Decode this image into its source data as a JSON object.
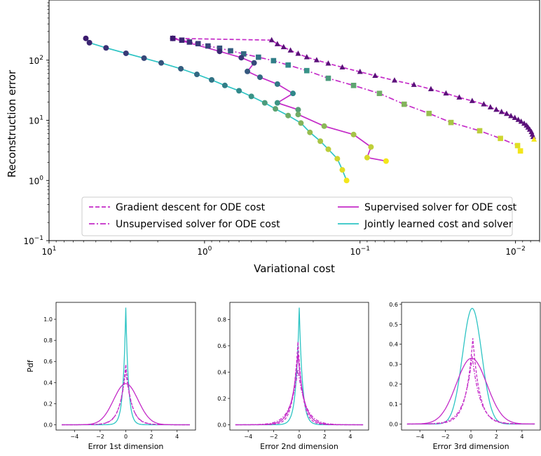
{
  "colors": {
    "magenta": "#c42bc8",
    "cyan": "#2ec4c4",
    "marker_start": "#3b1a6e",
    "marker_mid": "#2f8f8c",
    "marker_end": "#f3e61a",
    "triangle": "#5b117a"
  },
  "chart_data": [
    {
      "type": "line",
      "xlabel": "Variational cost",
      "ylabel": "Reconstruction error",
      "xscale": "log",
      "yscale": "log",
      "xlim": [
        10,
        0.007
      ],
      "ylim": [
        0.1,
        1000
      ],
      "xticks": [
        {
          "value": 10,
          "base": "10",
          "exp": "1"
        },
        {
          "value": 1,
          "base": "10",
          "exp": "0"
        },
        {
          "value": 0.1,
          "base": "10",
          "exp": "−1"
        },
        {
          "value": 0.01,
          "base": "10",
          "exp": "−2"
        }
      ],
      "yticks": [
        {
          "value": 0.1,
          "base": "10",
          "exp": "−1"
        },
        {
          "value": 1,
          "base": "10",
          "exp": "0"
        },
        {
          "value": 10,
          "base": "10",
          "exp": "1"
        },
        {
          "value": 100,
          "base": "10",
          "exp": "2"
        }
      ],
      "legend": {
        "position": "lower-center",
        "columns": 2,
        "entries": [
          {
            "label": "Gradient descent for ODE cost",
            "color": "#c42bc8",
            "style": "dashed"
          },
          {
            "label": "Supervised solver for ODE cost",
            "color": "#c42bc8",
            "style": "solid"
          },
          {
            "label": "Unsupervised solver for ODE cost",
            "color": "#c42bc8",
            "style": "dashdot"
          },
          {
            "label": "Jointly learned cost and solver",
            "color": "#2ec4c4",
            "style": "solid"
          }
        ]
      },
      "series": [
        {
          "name": "Gradient descent for ODE cost",
          "color": "#c42bc8",
          "style": "dashed",
          "marker": "triangle",
          "x": [
            1.6,
            0.37,
            0.34,
            0.31,
            0.28,
            0.25,
            0.22,
            0.19,
            0.16,
            0.13,
            0.1,
            0.08,
            0.06,
            0.045,
            0.035,
            0.028,
            0.023,
            0.019,
            0.016,
            0.0145,
            0.0133,
            0.0123,
            0.0114,
            0.0107,
            0.0101,
            0.0096,
            0.0092,
            0.0088,
            0.0085,
            0.0083,
            0.0081,
            0.0079,
            0.0078,
            0.0077,
            0.0076
          ],
          "y": [
            230,
            215,
            185,
            165,
            145,
            128,
            112,
            100,
            88,
            76,
            64,
            55,
            46,
            39,
            33,
            28,
            24,
            21,
            18.5,
            16.5,
            15,
            13.8,
            12.8,
            11.8,
            11,
            10.2,
            9.5,
            8.8,
            8.2,
            7.6,
            7.0,
            6.4,
            5.8,
            5.3,
            4.8
          ]
        },
        {
          "name": "Unsupervised solver for ODE cost",
          "color": "#c42bc8",
          "style": "dashdot",
          "marker": "square",
          "x": [
            1.6,
            1.4,
            1.25,
            1.1,
            0.95,
            0.8,
            0.68,
            0.56,
            0.45,
            0.36,
            0.29,
            0.22,
            0.16,
            0.11,
            0.075,
            0.052,
            0.036,
            0.026,
            0.017,
            0.0125,
            0.0097,
            0.0093
          ],
          "y": [
            230,
            215,
            200,
            188,
            172,
            158,
            143,
            127,
            112,
            98,
            83,
            67,
            50,
            38,
            28,
            18.5,
            13,
            9.2,
            6.7,
            5.0,
            3.8,
            3.1
          ]
        },
        {
          "name": "Supervised solver for ODE cost",
          "color": "#c42bc8",
          "style": "solid",
          "marker": "circle",
          "x": [
            1.6,
            0.8,
            0.58,
            0.48,
            0.53,
            0.44,
            0.34,
            0.27,
            0.34,
            0.25,
            0.25,
            0.17,
            0.11,
            0.085,
            0.09,
            0.068
          ],
          "y": [
            230,
            140,
            110,
            90,
            65,
            52,
            40,
            28,
            19.5,
            15,
            12.5,
            8.0,
            5.8,
            3.6,
            2.4,
            2.1
          ]
        },
        {
          "name": "Jointly learned cost and solver",
          "color": "#2ec4c4",
          "style": "solid",
          "marker": "circle",
          "x": [
            5.8,
            5.5,
            4.3,
            3.2,
            2.45,
            1.9,
            1.42,
            1.12,
            0.9,
            0.74,
            0.6,
            0.5,
            0.41,
            0.35,
            0.29,
            0.24,
            0.21,
            0.18,
            0.16,
            0.14,
            0.13,
            0.122
          ],
          "y": [
            230,
            195,
            160,
            130,
            108,
            90,
            72,
            58,
            47,
            38,
            31,
            25,
            19.5,
            15.5,
            12,
            9.0,
            6.3,
            4.5,
            3.3,
            2.3,
            1.5,
            1.0
          ]
        }
      ]
    },
    {
      "type": "line",
      "xlabel": "Error 1st dimension",
      "ylabel": "Pdf",
      "xlim": [
        -5,
        5
      ],
      "ylim": [
        -0.05,
        1.16
      ],
      "xticks": [
        -4,
        -2,
        0,
        2,
        4
      ],
      "xtick_labels": [
        "−4",
        "−2",
        "0",
        "2",
        "4"
      ],
      "yticks": [
        0.0,
        0.2,
        0.4,
        0.6,
        0.8,
        1.0
      ],
      "ytick_labels": [
        "0.0",
        "0.2",
        "0.4",
        "0.6",
        "0.8",
        "1.0"
      ],
      "curves": [
        {
          "color": "#2ec4c4",
          "style": "solid",
          "peak": 1.11,
          "center": 0.0,
          "scale": 0.33,
          "shape": "laplace"
        },
        {
          "color": "#c42bc8",
          "style": "dashed",
          "peak": 0.57,
          "center": 0.0,
          "scale": 0.7,
          "shape": "laplace"
        },
        {
          "color": "#c42bc8",
          "style": "dashdot",
          "peak": 0.52,
          "center": 0.0,
          "scale": 0.75,
          "shape": "laplace"
        },
        {
          "color": "#c42bc8",
          "style": "solid",
          "peak": 0.39,
          "center": 0.0,
          "scale": 0.95,
          "shape": "gauss"
        }
      ]
    },
    {
      "type": "line",
      "xlabel": "Error 2nd dimension",
      "ylabel": "",
      "xlim": [
        -5,
        5
      ],
      "ylim": [
        -0.04,
        0.93
      ],
      "xticks": [
        -4,
        -2,
        0,
        2,
        4
      ],
      "xtick_labels": [
        "−4",
        "−2",
        "0",
        "2",
        "4"
      ],
      "yticks": [
        0.0,
        0.2,
        0.4,
        0.6,
        0.8
      ],
      "ytick_labels": [
        "0.0",
        "0.2",
        "0.4",
        "0.6",
        "0.8"
      ],
      "curves": [
        {
          "color": "#2ec4c4",
          "style": "solid",
          "peak": 0.89,
          "center": 0.0,
          "scale": 0.4,
          "shape": "laplace"
        },
        {
          "color": "#c42bc8",
          "style": "dashed",
          "peak": 0.63,
          "center": -0.1,
          "scale": 0.6,
          "shape": "laplace"
        },
        {
          "color": "#c42bc8",
          "style": "solid",
          "peak": 0.54,
          "center": -0.1,
          "scale": 0.75,
          "shape": "laplace"
        },
        {
          "color": "#c42bc8",
          "style": "dashdot",
          "peak": 0.42,
          "center": -0.1,
          "scale": 0.95,
          "shape": "laplace"
        }
      ]
    },
    {
      "type": "line",
      "xlabel": "Error 3rd dimension",
      "ylabel": "",
      "xlim": [
        -5,
        5
      ],
      "ylim": [
        -0.03,
        0.61
      ],
      "xticks": [
        -4,
        -2,
        0,
        2,
        4
      ],
      "xtick_labels": [
        "−4",
        "−2",
        "0",
        "2",
        "4"
      ],
      "yticks": [
        0.0,
        0.1,
        0.2,
        0.3,
        0.4,
        0.5,
        0.6
      ],
      "ytick_labels": [
        "0.0",
        "0.1",
        "0.2",
        "0.3",
        "0.4",
        "0.5",
        "0.6"
      ],
      "curves": [
        {
          "color": "#2ec4c4",
          "style": "solid",
          "peak": 0.58,
          "center": 0.1,
          "scale": 0.75,
          "shape": "gauss"
        },
        {
          "color": "#c42bc8",
          "style": "dashed",
          "peak": 0.43,
          "center": 0.15,
          "scale": 0.85,
          "shape": "laplace"
        },
        {
          "color": "#c42bc8",
          "style": "dashdot",
          "peak": 0.34,
          "center": 0.1,
          "scale": 1.0,
          "shape": "laplace"
        },
        {
          "color": "#c42bc8",
          "style": "solid",
          "peak": 0.33,
          "center": 0.05,
          "scale": 1.2,
          "shape": "gauss"
        }
      ]
    }
  ]
}
